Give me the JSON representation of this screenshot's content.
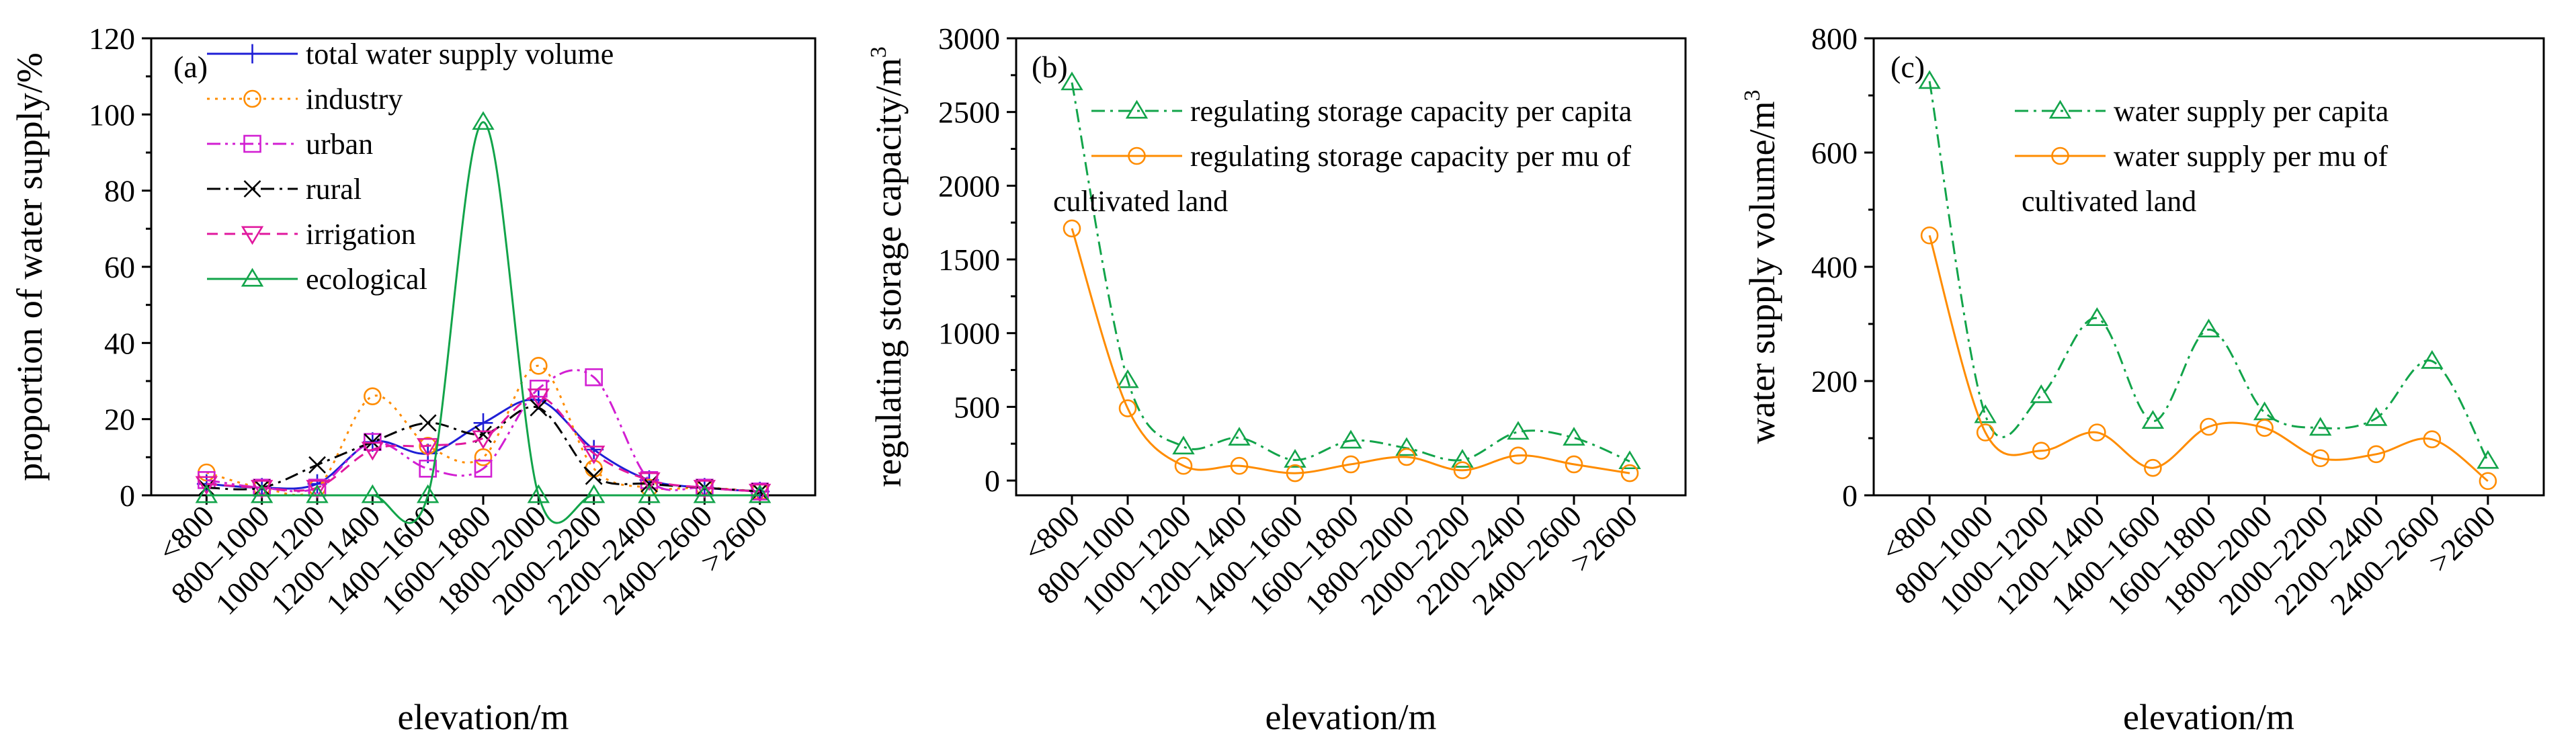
{
  "chart_data": [
    {
      "type": "line",
      "panel_label": "(a)",
      "xlabel": "elevation/m",
      "ylabel": "proportion of water supply/%",
      "ylim": [
        0,
        120
      ],
      "yticks": [
        0,
        20,
        40,
        60,
        80,
        100,
        120
      ],
      "categories": [
        "<800",
        "800–1000",
        "1000–1200",
        "1200–1400",
        "1400–1600",
        "1600–1800",
        "1800–2000",
        "2000–2200",
        "2200–2400",
        "2400–2600",
        ">2600"
      ],
      "series": [
        {
          "name": "total water supply volume",
          "color": "#1f1fd6",
          "dash": "solid",
          "marker": "plus",
          "values": [
            3,
            2,
            3,
            14,
            11,
            19,
            25,
            12,
            4,
            2,
            1
          ]
        },
        {
          "name": "industry",
          "color": "#ff8c00",
          "dash": "dot",
          "marker": "circle",
          "values": [
            6,
            2,
            2,
            26,
            13,
            10,
            34,
            7,
            2,
            2,
            1
          ]
        },
        {
          "name": "urban",
          "color": "#d21fd2",
          "dash": "dashdotdot",
          "marker": "square",
          "values": [
            4,
            2,
            2,
            14,
            7,
            7,
            28,
            31,
            4,
            2,
            1
          ]
        },
        {
          "name": "rural",
          "color": "#000000",
          "dash": "dashdot",
          "marker": "x",
          "values": [
            2,
            2,
            8,
            14,
            19,
            16,
            23,
            5,
            3,
            2,
            1
          ]
        },
        {
          "name": "irrigation",
          "color": "#e0189e",
          "dash": "dash",
          "marker": "triangle-down",
          "values": [
            3,
            2,
            2,
            12,
            13,
            15,
            26,
            11,
            4,
            2,
            1
          ]
        },
        {
          "name": "ecological",
          "color": "#12a44a",
          "dash": "solid",
          "marker": "triangle-up",
          "values": [
            0,
            0,
            0,
            0,
            0,
            98,
            0,
            0,
            0,
            0,
            0
          ]
        }
      ]
    },
    {
      "type": "line",
      "panel_label": "(b)",
      "xlabel": "elevation/m",
      "ylabel": "regulating storage capacity/m",
      "ylabel_sup": "3",
      "ylim": [
        -100,
        3000
      ],
      "yticks": [
        0,
        500,
        1000,
        1500,
        2000,
        2500,
        3000
      ],
      "categories": [
        "<800",
        "800–1000",
        "1000–1200",
        "1200–1400",
        "1400–1600",
        "1600–1800",
        "1800–2000",
        "2000–2200",
        "2200–2400",
        "2400–2600",
        ">2600"
      ],
      "series": [
        {
          "name": "regulating storage capacity per capita",
          "color": "#12a44a",
          "dash": "dashdot",
          "marker": "triangle-up",
          "values": [
            2700,
            680,
            230,
            290,
            140,
            270,
            220,
            140,
            330,
            290,
            130
          ]
        },
        {
          "name": "regulating storage capacity per mu of",
          "name_line2": "cultivated land",
          "color": "#ff8c00",
          "dash": "solid",
          "marker": "circle",
          "values": [
            1710,
            490,
            100,
            100,
            50,
            110,
            160,
            70,
            170,
            110,
            50
          ]
        }
      ]
    },
    {
      "type": "line",
      "panel_label": "(c)",
      "xlabel": "elevation/m",
      "ylabel": "water supply volume/m",
      "ylabel_sup": "3",
      "ylim": [
        0,
        800
      ],
      "yticks": [
        0,
        200,
        400,
        600,
        800
      ],
      "categories": [
        "<800",
        "800–1000",
        "1000–1200",
        "1200–1400",
        "1400–1600",
        "1600–1800",
        "1800–2000",
        "2000–2200",
        "2200–2400",
        "2400–2600",
        ">2600"
      ],
      "series": [
        {
          "name": "water supply per capita",
          "color": "#12a44a",
          "dash": "dashdot",
          "marker": "triangle-up",
          "values": [
            725,
            140,
            175,
            310,
            130,
            290,
            145,
            118,
            135,
            235,
            60
          ]
        },
        {
          "name": "water supply per mu of",
          "name_line2": "cultivated land",
          "color": "#ff8c00",
          "dash": "solid",
          "marker": "circle",
          "values": [
            455,
            110,
            78,
            110,
            48,
            120,
            118,
            65,
            72,
            98,
            25
          ]
        }
      ]
    }
  ]
}
